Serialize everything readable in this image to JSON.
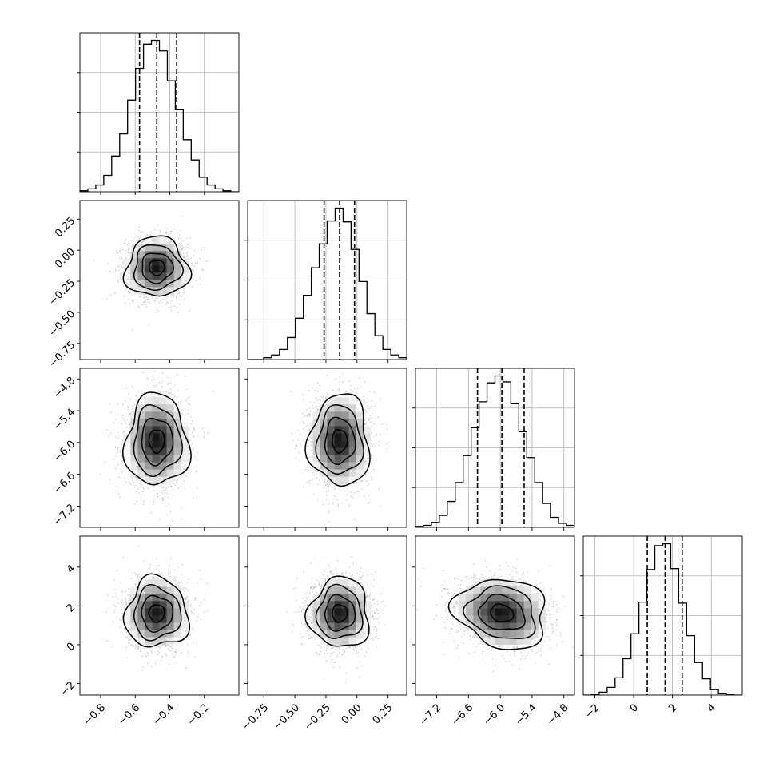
{
  "chart_data": {
    "type": "corner",
    "colors": {
      "line": "#000000",
      "grid": "#b0b0b0",
      "scatter": "#8c8c8c",
      "density_dark": "#000000",
      "background": "#ffffff"
    },
    "grid": true,
    "quantile_lines": "dashed",
    "parameters": [
      {
        "range": [
          -0.92,
          -0.0
        ],
        "ticks": [
          -0.8,
          -0.6,
          -0.4,
          -0.2
        ],
        "tick_labels": [
          "−0.8",
          "−0.6",
          "−0.4",
          "−0.2"
        ],
        "quantiles": [
          -0.575,
          -0.475,
          -0.36
        ],
        "mean": -0.475,
        "sd": 0.09
      },
      {
        "range": [
          -0.88,
          0.4
        ],
        "ticks": [
          -0.75,
          -0.5,
          -0.25,
          0.0,
          0.25
        ],
        "tick_labels": [
          "−0.75",
          "−0.50",
          "−0.25",
          "0.00",
          "0.25"
        ],
        "quantiles": [
          -0.265,
          -0.14,
          -0.02
        ],
        "mean": -0.14,
        "sd": 0.12
      },
      {
        "range": [
          -7.6,
          -4.6
        ],
        "ticks": [
          -7.2,
          -6.6,
          -6.0,
          -5.4,
          -4.8
        ],
        "tick_labels": [
          "−7.2",
          "−6.6",
          "−6.0",
          "−5.4",
          "−4.8"
        ],
        "quantiles": [
          -6.43,
          -5.97,
          -5.55
        ],
        "mean": -5.97,
        "sd": 0.43
      },
      {
        "range": [
          -2.6,
          5.6
        ],
        "ticks": [
          -2,
          0,
          2,
          4
        ],
        "tick_labels": [
          "−2",
          "0",
          "2",
          "4"
        ],
        "quantiles": [
          0.7,
          1.62,
          2.5
        ],
        "mean": 1.62,
        "sd": 0.9
      }
    ],
    "histograms": [
      {
        "param": 0,
        "bin_edges": [
          -0.92,
          -0.874,
          -0.828,
          -0.782,
          -0.736,
          -0.69,
          -0.644,
          -0.598,
          -0.552,
          -0.506,
          -0.46,
          -0.414,
          -0.368,
          -0.322,
          -0.276,
          -0.23,
          -0.184,
          -0.138,
          -0.092,
          -0.046,
          0.0
        ],
        "counts": [
          1,
          3,
          7,
          17,
          37,
          60,
          95,
          128,
          153,
          157,
          146,
          115,
          85,
          54,
          33,
          15,
          7,
          3,
          1,
          0
        ]
      },
      {
        "param": 1,
        "bin_edges": [
          -0.88,
          -0.816,
          -0.752,
          -0.688,
          -0.624,
          -0.56,
          -0.496,
          -0.432,
          -0.368,
          -0.304,
          -0.24,
          -0.176,
          -0.112,
          -0.048,
          0.016,
          0.08,
          0.144,
          0.208,
          0.272,
          0.336,
          0.4
        ],
        "counts": [
          0,
          0,
          2,
          5,
          11,
          24,
          45,
          70,
          100,
          126,
          151,
          165,
          150,
          120,
          85,
          50,
          26,
          11,
          5,
          2
        ]
      },
      {
        "param": 2,
        "bin_edges": [
          -7.6,
          -7.45,
          -7.3,
          -7.15,
          -7.0,
          -6.85,
          -6.7,
          -6.55,
          -6.4,
          -6.25,
          -6.1,
          -5.95,
          -5.8,
          -5.65,
          -5.5,
          -5.35,
          -5.2,
          -5.05,
          -4.9,
          -4.75,
          -4.6
        ],
        "counts": [
          1,
          2,
          5,
          12,
          26,
          45,
          72,
          100,
          126,
          145,
          152,
          146,
          124,
          96,
          70,
          45,
          24,
          10,
          4,
          2
        ]
      },
      {
        "param": 3,
        "bin_edges": [
          -2.6,
          -2.19,
          -1.78,
          -1.37,
          -0.96,
          -0.55,
          -0.14,
          0.27,
          0.68,
          1.09,
          1.5,
          1.91,
          2.32,
          2.73,
          3.14,
          3.55,
          3.96,
          4.37,
          4.78,
          5.19,
          5.6
        ],
        "counts": [
          0,
          1,
          3,
          8,
          18,
          38,
          64,
          97,
          131,
          156,
          158,
          132,
          96,
          62,
          34,
          17,
          6,
          2,
          1,
          0
        ]
      }
    ],
    "pairs": [
      {
        "x_param": 0,
        "y_param": 1,
        "correlation": 0.0
      },
      {
        "x_param": 0,
        "y_param": 2,
        "correlation": 0.0
      },
      {
        "x_param": 1,
        "y_param": 2,
        "correlation": 0.0
      },
      {
        "x_param": 0,
        "y_param": 3,
        "correlation": 0.0
      },
      {
        "x_param": 1,
        "y_param": 3,
        "correlation": 0.0
      },
      {
        "x_param": 2,
        "y_param": 3,
        "correlation": -0.15
      }
    ],
    "contour_levels_sigma": [
      0.5,
      1.0,
      1.5,
      2.0
    ]
  }
}
